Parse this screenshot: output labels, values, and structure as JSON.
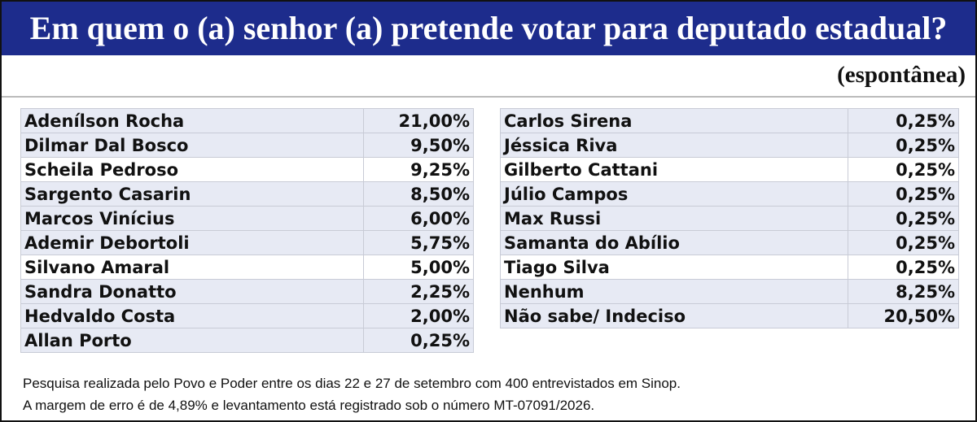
{
  "header": {
    "title": "Em quem o (a) senhor (a) pretende votar para deputado estadual?",
    "subtitle": "(espontânea)"
  },
  "tables": [
    {
      "rows": [
        [
          "Adenílson Rocha",
          "21,00%"
        ],
        [
          "Dilmar Dal Bosco",
          "9,50%"
        ],
        [
          "Scheila Pedroso",
          "9,25%"
        ],
        [
          "Sargento Casarin",
          "8,50%"
        ],
        [
          "Marcos Vinícius",
          "6,00%"
        ],
        [
          "Ademir Debortoli",
          "5,75%"
        ],
        [
          "Silvano Amaral",
          "5,00%"
        ],
        [
          "Sandra Donatto",
          "2,25%"
        ],
        [
          "Hedvaldo Costa",
          "2,00%"
        ],
        [
          "Allan Porto",
          "0,25%"
        ]
      ]
    },
    {
      "rows": [
        [
          "Carlos Sirena",
          "0,25%"
        ],
        [
          "Jéssica Riva",
          "0,25%"
        ],
        [
          "Gilberto Cattani",
          "0,25%"
        ],
        [
          "Júlio Campos",
          "0,25%"
        ],
        [
          "Max Russi",
          "0,25%"
        ],
        [
          "Samanta do Abílio",
          "0,25%"
        ],
        [
          "Tiago Silva",
          "0,25%"
        ],
        [
          "Nenhum",
          "8,25%"
        ],
        [
          "Não sabe/ Indeciso",
          "20,50%"
        ]
      ]
    }
  ],
  "footnote": [
    "Pesquisa realizada pelo Povo e Poder entre os dias 22 e 27 de setembro com 400 entrevistados em Sinop.",
    "A margem de erro é de 4,89% e levantamento está registrado sob o número MT-07091/2026."
  ]
}
